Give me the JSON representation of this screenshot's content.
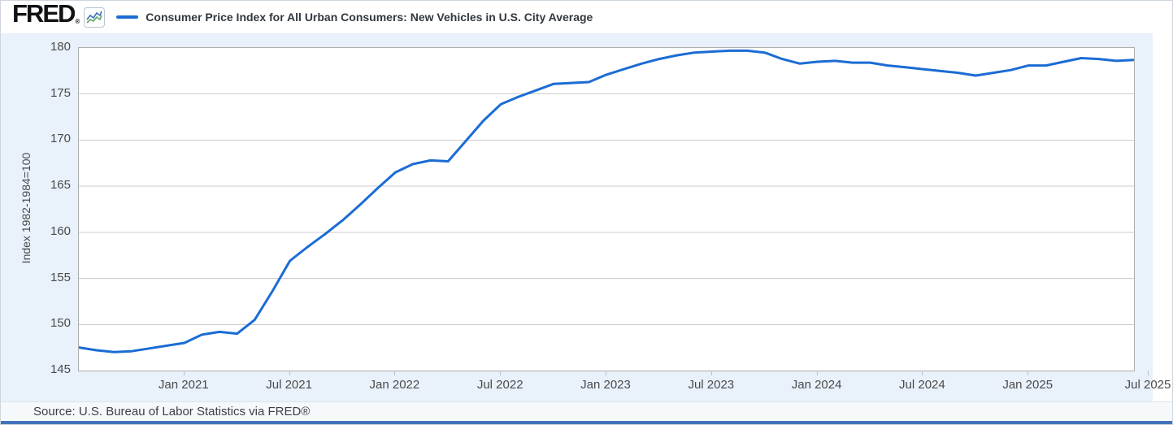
{
  "header": {
    "logo_text": "FRED",
    "logo_reg": "®",
    "legend_label": "Consumer Price Index for All Urban Consumers: New Vehicles in U.S. City Average"
  },
  "footer": {
    "source_text": "Source: U.S. Bureau of Labor Statistics via FRED®"
  },
  "colors": {
    "line": "#1b6cd4",
    "chart_background": "#e9f1fa",
    "plot_background": "#ffffff",
    "gridline": "#cdcdcd",
    "plot_border": "#aeaeae",
    "bottom_accent_bar": "#4174b9",
    "icon_blue": "#3d6fb7",
    "icon_green": "#5fa868"
  },
  "chart_data": {
    "type": "line",
    "title": "Consumer Price Index for All Urban Consumers: New Vehicles in U.S. City Average",
    "xlabel": "",
    "ylabel": "Index 1982-1984=100",
    "ylim": [
      145,
      180
    ],
    "grid": true,
    "legend_position": "top",
    "y_ticks": [
      180,
      175,
      170,
      165,
      160,
      155,
      150,
      145
    ],
    "x_start": "2020-07",
    "x_freq": "monthly",
    "x_ticks": [
      {
        "label": "Jan 2021",
        "m": 6,
        "dx": 0
      },
      {
        "label": "Jul 2021",
        "m": 12,
        "dx": 0
      },
      {
        "label": "Jan 2022",
        "m": 18,
        "dx": 0
      },
      {
        "label": "Jul 2022",
        "m": 24,
        "dx": 0
      },
      {
        "label": "Jan 2023",
        "m": 30,
        "dx": 0
      },
      {
        "label": "Jul 2023",
        "m": 36,
        "dx": 0
      },
      {
        "label": "Jan 2024",
        "m": 42,
        "dx": 0
      },
      {
        "label": "Jul 2024",
        "m": 48,
        "dx": 0
      },
      {
        "label": "Jan 2025",
        "m": 54,
        "dx": 0
      },
      {
        "label": "Jul 2025",
        "m": 60,
        "dx": 18
      }
    ],
    "series": [
      {
        "name": "Consumer Price Index for All Urban Consumers: New Vehicles in U.S. City Average",
        "values": [
          147.5,
          147.2,
          147.0,
          147.1,
          147.4,
          147.7,
          148.0,
          148.9,
          149.2,
          149.0,
          150.5,
          153.6,
          156.9,
          158.4,
          159.8,
          161.3,
          163.0,
          164.8,
          166.5,
          167.4,
          167.8,
          167.7,
          169.9,
          172.1,
          173.9,
          174.7,
          175.4,
          176.1,
          176.2,
          176.3,
          177.1,
          177.7,
          178.3,
          178.8,
          179.2,
          179.5,
          179.6,
          179.7,
          179.7,
          179.5,
          178.8,
          178.3,
          178.5,
          178.6,
          178.4,
          178.4,
          178.1,
          177.9,
          177.7,
          177.5,
          177.3,
          177.0,
          177.3,
          177.6,
          178.1,
          178.1,
          178.5,
          178.9,
          178.8,
          178.6,
          178.7
        ]
      }
    ]
  }
}
